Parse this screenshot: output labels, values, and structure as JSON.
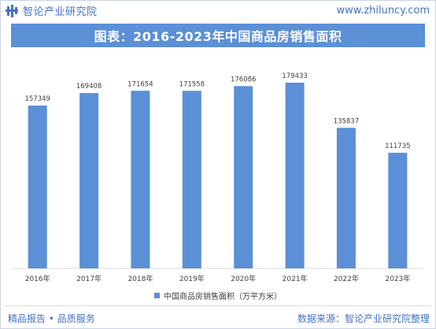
{
  "header": {
    "brand": "智论产业研究院",
    "site": "www.zhiluncy.com"
  },
  "title": "图表：2016-2023年中国商品房销售面积",
  "footer": {
    "left": "精品报告 • 品质服务",
    "right": "数据来源：智论产业研究院整理"
  },
  "colors": {
    "accent": "#4472c4",
    "bar": "#5b8fd6",
    "title_bg": "#5b8fd6"
  },
  "icons": [
    "logo-mark-icon"
  ],
  "chart_data": {
    "type": "bar",
    "title": "图表：2016-2023年中国商品房销售面积",
    "categories": [
      "2016年",
      "2017年",
      "2018年",
      "2019年",
      "2020年",
      "2021年",
      "2022年",
      "2023年"
    ],
    "series": [
      {
        "name": "中国商品房销售面积（万平方米）",
        "values": [
          157349,
          169408,
          171654,
          171558,
          176086,
          179433,
          135837,
          111735
        ],
        "labels": [
          "157349",
          "169408",
          "171654",
          "171558",
          "176086",
          "179433",
          "135837",
          "111735"
        ]
      }
    ],
    "ylim": [
      0,
      200000
    ],
    "grid": false,
    "legend_position": "bottom",
    "xlabel": "",
    "ylabel": ""
  }
}
